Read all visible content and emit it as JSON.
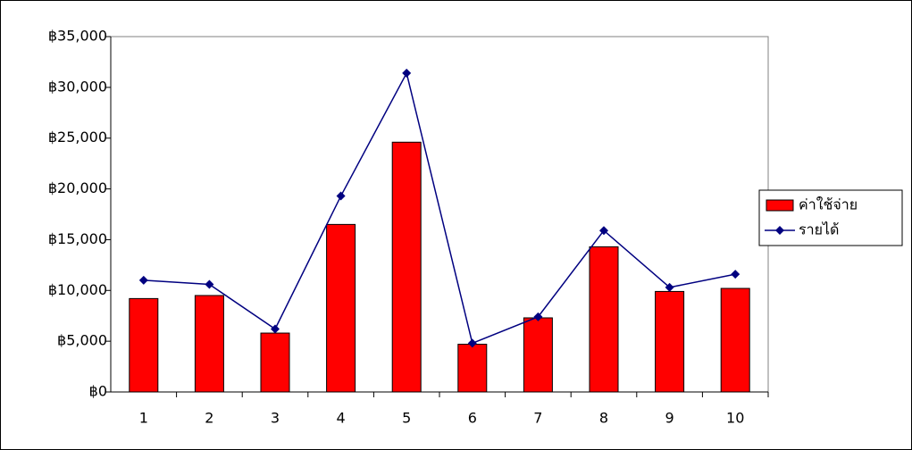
{
  "chart_data": {
    "type": "combo",
    "categories": [
      "1",
      "2",
      "3",
      "4",
      "5",
      "6",
      "7",
      "8",
      "9",
      "10"
    ],
    "series": [
      {
        "name": "ค่าใช้จ่าย",
        "type": "bar",
        "color": "#ff0000",
        "values": [
          9200,
          9500,
          5800,
          16500,
          24600,
          4700,
          7300,
          14300,
          9900,
          10200
        ]
      },
      {
        "name": "รายได้",
        "type": "line",
        "color": "#000080",
        "values": [
          11000,
          10600,
          6200,
          19300,
          31400,
          4800,
          7400,
          15900,
          10300,
          11600
        ]
      }
    ],
    "ylim": [
      0,
      35000
    ],
    "yticks": [
      {
        "value": 0,
        "label": "฿0"
      },
      {
        "value": 5000,
        "label": "฿5,000"
      },
      {
        "value": 10000,
        "label": "฿10,000"
      },
      {
        "value": 15000,
        "label": "฿15,000"
      },
      {
        "value": 20000,
        "label": "฿20,000"
      },
      {
        "value": 25000,
        "label": "฿25,000"
      },
      {
        "value": 30000,
        "label": "฿30,000"
      },
      {
        "value": 35000,
        "label": "฿35,000"
      }
    ],
    "legend": "right"
  }
}
